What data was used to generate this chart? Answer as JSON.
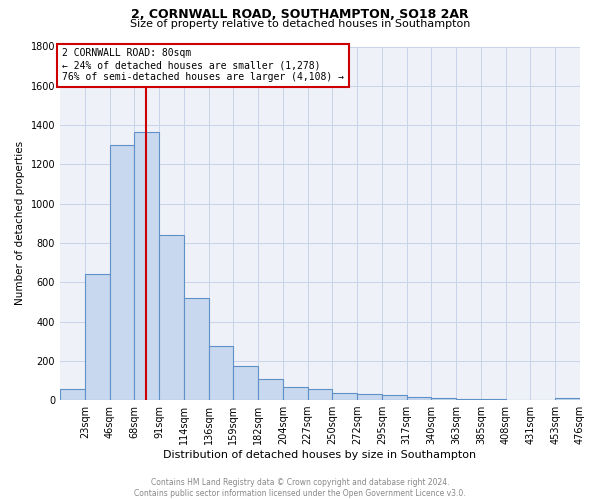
{
  "title_line1": "2, CORNWALL ROAD, SOUTHAMPTON, SO18 2AR",
  "title_line2": "Size of property relative to detached houses in Southampton",
  "xlabel": "Distribution of detached houses by size in Southampton",
  "ylabel": "Number of detached properties",
  "footnote": "Contains HM Land Registry data © Crown copyright and database right 2024.\nContains public sector information licensed under the Open Government Licence v3.0.",
  "bar_labels": [
    "23sqm",
    "46sqm",
    "68sqm",
    "91sqm",
    "114sqm",
    "136sqm",
    "159sqm",
    "182sqm",
    "204sqm",
    "227sqm",
    "250sqm",
    "272sqm",
    "295sqm",
    "317sqm",
    "340sqm",
    "363sqm",
    "385sqm",
    "408sqm",
    "431sqm",
    "453sqm",
    "476sqm"
  ],
  "bar_values": [
    55,
    640,
    1300,
    1365,
    840,
    520,
    275,
    175,
    105,
    65,
    55,
    35,
    30,
    25,
    15,
    10,
    5,
    3,
    2,
    1,
    10
  ],
  "bar_color": "#c8d8ee",
  "bar_edge_color": "#6090c8",
  "vline_x_bin": 2,
  "vline_color": "#cc0000",
  "annotation_title": "2 CORNWALL ROAD: 80sqm",
  "annotation_line1": "← 24% of detached houses are smaller (1,278)",
  "annotation_line2": "76% of semi-detached houses are larger (4,108) →",
  "annotation_box_facecolor": "#ffffff",
  "annotation_box_edgecolor": "#cc0000",
  "ylim": [
    0,
    1800
  ],
  "yticks": [
    0,
    200,
    400,
    600,
    800,
    1000,
    1200,
    1400,
    1600,
    1800
  ],
  "grid_color": "#c8d4e8",
  "background_color": "#eef2f8",
  "title1_fontsize": 9,
  "title2_fontsize": 8,
  "xlabel_fontsize": 8,
  "ylabel_fontsize": 7.5,
  "tick_fontsize": 7,
  "footnote_fontsize": 5.5,
  "footnote_color": "#888888"
}
